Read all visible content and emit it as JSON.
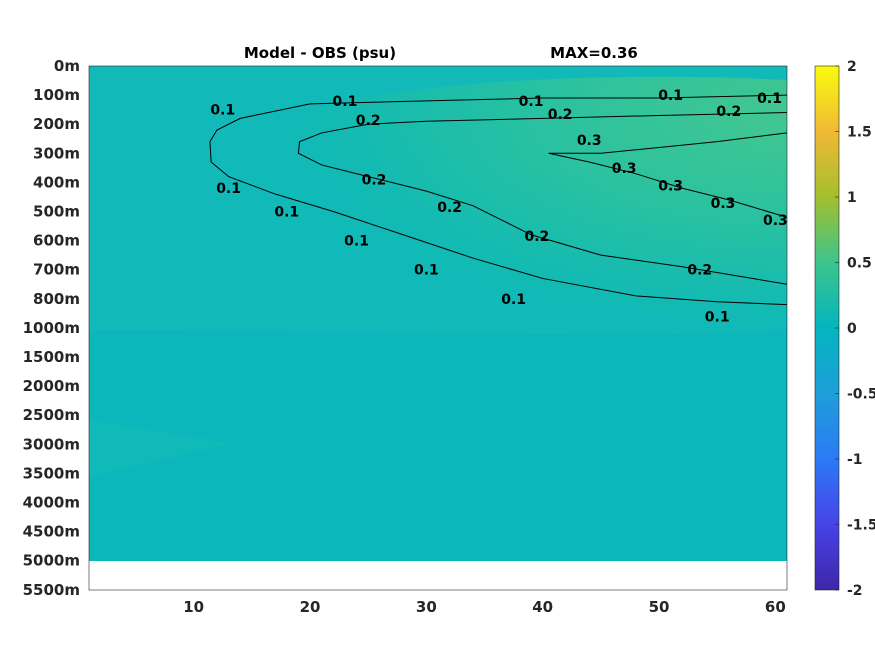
{
  "chart_data": {
    "type": "heatmap",
    "title": "Model - OBS (psu)",
    "annotation": "MAX=0.36",
    "xlim": [
      1,
      61
    ],
    "x_ticks": [
      10,
      20,
      30,
      40,
      50,
      60
    ],
    "y_tick_labels": [
      "0m",
      "100m",
      "200m",
      "300m",
      "400m",
      "500m",
      "600m",
      "700m",
      "800m",
      "1000m",
      "1500m",
      "2000m",
      "2500m",
      "3000m",
      "3500m",
      "4000m",
      "4500m",
      "5000m",
      "5500m"
    ],
    "y_axis_reversed": true,
    "colorbar": {
      "colormap": "parula",
      "range": [
        -2,
        2
      ],
      "ticks": [
        "2",
        "1.5",
        "1",
        "0.5",
        "0",
        "-0.5",
        "-1",
        "-1.5",
        "-2"
      ]
    },
    "background_value": 0,
    "contours": [
      {
        "level": 0.1,
        "points": [
          [
            61,
            1.0
          ],
          [
            50,
            1.1
          ],
          [
            40,
            1.1
          ],
          [
            30,
            1.2
          ],
          [
            20,
            1.3
          ],
          [
            14,
            1.8
          ],
          [
            12,
            2.2
          ],
          [
            11.4,
            2.6
          ],
          [
            11.5,
            3.3
          ],
          [
            13,
            3.8
          ],
          [
            17,
            4.4
          ],
          [
            22,
            5.0
          ],
          [
            28,
            5.8
          ],
          [
            34,
            6.6
          ],
          [
            40,
            7.3
          ],
          [
            48,
            7.9
          ],
          [
            55,
            8.1
          ],
          [
            61,
            8.2
          ]
        ],
        "labels": [
          [
            12.5,
            1.5
          ],
          [
            23,
            1.2
          ],
          [
            39,
            1.2
          ],
          [
            51,
            1.0
          ],
          [
            59.5,
            1.1
          ],
          [
            13,
            4.2
          ],
          [
            18,
            5.0
          ],
          [
            24,
            6.0
          ],
          [
            30,
            7.0
          ],
          [
            37.5,
            8.0
          ],
          [
            55,
            8.6
          ]
        ]
      },
      {
        "level": 0.2,
        "points": [
          [
            61,
            1.6
          ],
          [
            50,
            1.7
          ],
          [
            40,
            1.8
          ],
          [
            30,
            1.9
          ],
          [
            25,
            2.0
          ],
          [
            21,
            2.3
          ],
          [
            19.1,
            2.6
          ],
          [
            19,
            3.0
          ],
          [
            21,
            3.4
          ],
          [
            25,
            3.8
          ],
          [
            30,
            4.3
          ],
          [
            34,
            4.8
          ],
          [
            36,
            5.2
          ],
          [
            39,
            5.8
          ],
          [
            45,
            6.5
          ],
          [
            52,
            6.9
          ],
          [
            58,
            7.3
          ],
          [
            61,
            7.5
          ]
        ],
        "labels": [
          [
            25,
            1.85
          ],
          [
            41.5,
            1.65
          ],
          [
            56,
            1.55
          ],
          [
            25.5,
            3.9
          ],
          [
            32,
            4.85
          ],
          [
            39.5,
            5.85
          ],
          [
            53.5,
            7.0
          ]
        ]
      },
      {
        "level": 0.3,
        "points": [
          [
            61,
            2.3
          ],
          [
            55,
            2.6
          ],
          [
            50,
            2.8
          ],
          [
            45,
            3.0
          ],
          [
            40.5,
            3.0
          ],
          [
            44,
            3.3
          ],
          [
            48,
            3.7
          ],
          [
            52,
            4.2
          ],
          [
            56,
            4.6
          ],
          [
            61,
            5.2
          ]
        ],
        "labels": [
          [
            44,
            2.55
          ],
          [
            47,
            3.5
          ],
          [
            51,
            4.1
          ],
          [
            55.5,
            4.7
          ],
          [
            60,
            5.3
          ]
        ]
      }
    ]
  }
}
